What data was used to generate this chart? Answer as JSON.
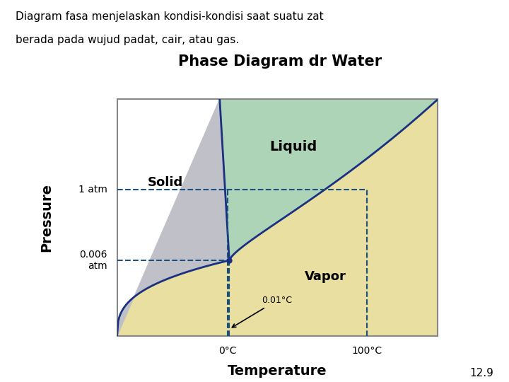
{
  "title": "Phase Diagram dr Water",
  "subtitle_line1": "Diagram fasa menjelaskan kondisi-kondisi saat suatu zat",
  "subtitle_line2": "berada pada wujud padat, cair, atau gas.",
  "xlabel": "Temperature",
  "ylabel": "Pressure",
  "footnote": "12.9",
  "solid_label": "Solid",
  "liquid_label": "Liquid",
  "vapor_label": "Vapor",
  "label_1atm": "1 atm",
  "label_006atm": "0.006\natm",
  "label_0C": "0°C",
  "label_001C": "0.01°C",
  "label_100C": "100°C",
  "color_solid": "#c0c0c8",
  "color_liquid": "#aed4b8",
  "color_vapor": "#e8dfa0",
  "color_line": "#1a3080",
  "color_dashed": "#1a5080",
  "background": "#ffffff",
  "title_fontsize": 15,
  "subtitle_fontsize": 11,
  "label_fontsize": 13,
  "axes_label_fontsize": 13,
  "x_tp": 3.5,
  "y_tp": 3.2,
  "x_nb": 7.8,
  "y_nb": 6.2,
  "x_min": 0.0,
  "x_max": 10.0,
  "y_min": 0.0,
  "y_max": 10.0
}
